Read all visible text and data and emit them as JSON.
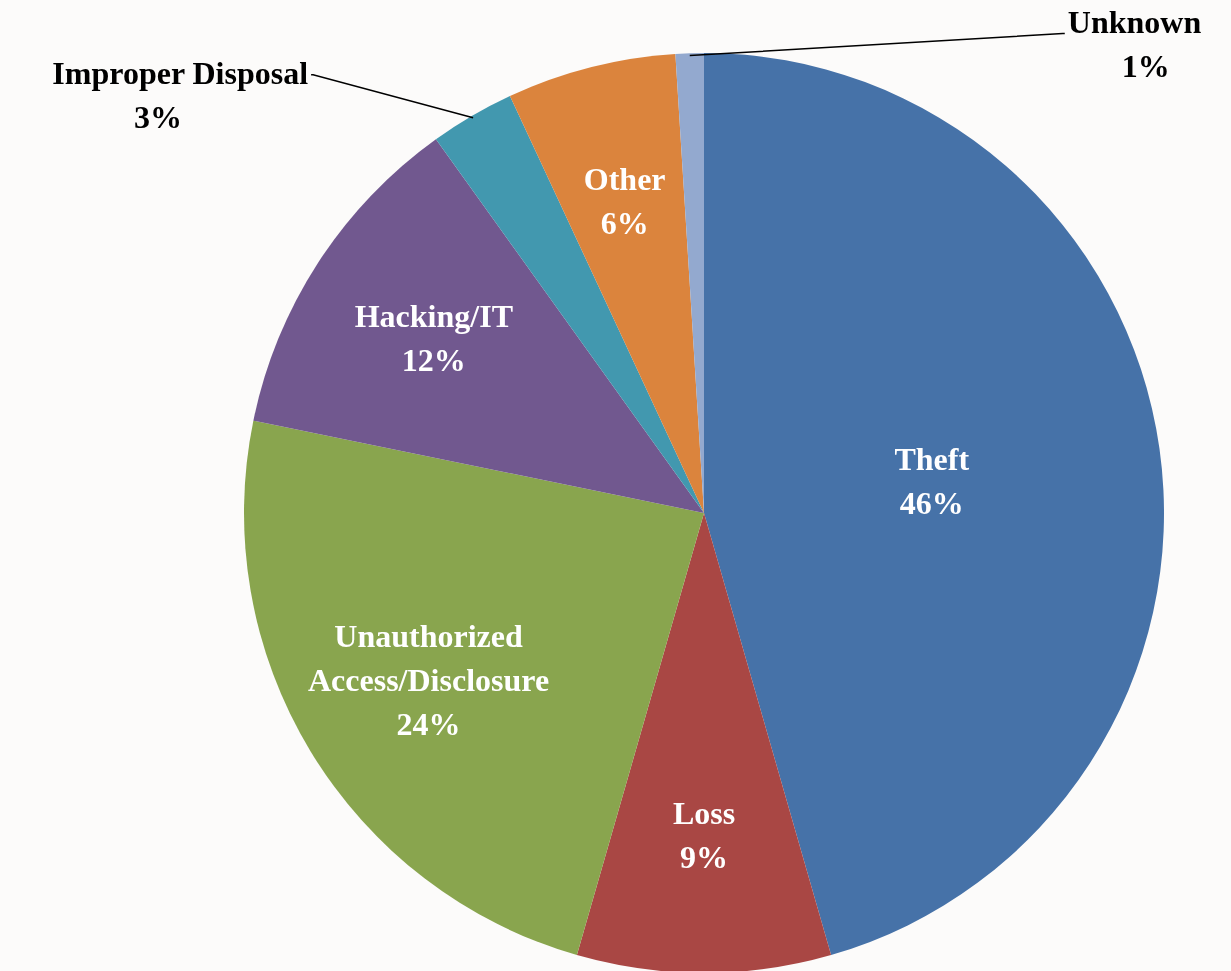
{
  "chart_data": {
    "type": "pie",
    "categories": [
      "Theft",
      "Loss",
      "Unauthorized Access/Disclosure",
      "Hacking/IT",
      "Improper Disposal",
      "Other",
      "Unknown"
    ],
    "values": [
      46,
      9,
      24,
      12,
      3,
      6,
      1
    ],
    "colors": [
      "#4672a8",
      "#a94744",
      "#89a54e",
      "#71588f",
      "#4298af",
      "#db843d",
      "#93a9cf"
    ],
    "value_labels": [
      "46%",
      "9%",
      "24%",
      "12%",
      "3%",
      "6%",
      "1%"
    ]
  }
}
